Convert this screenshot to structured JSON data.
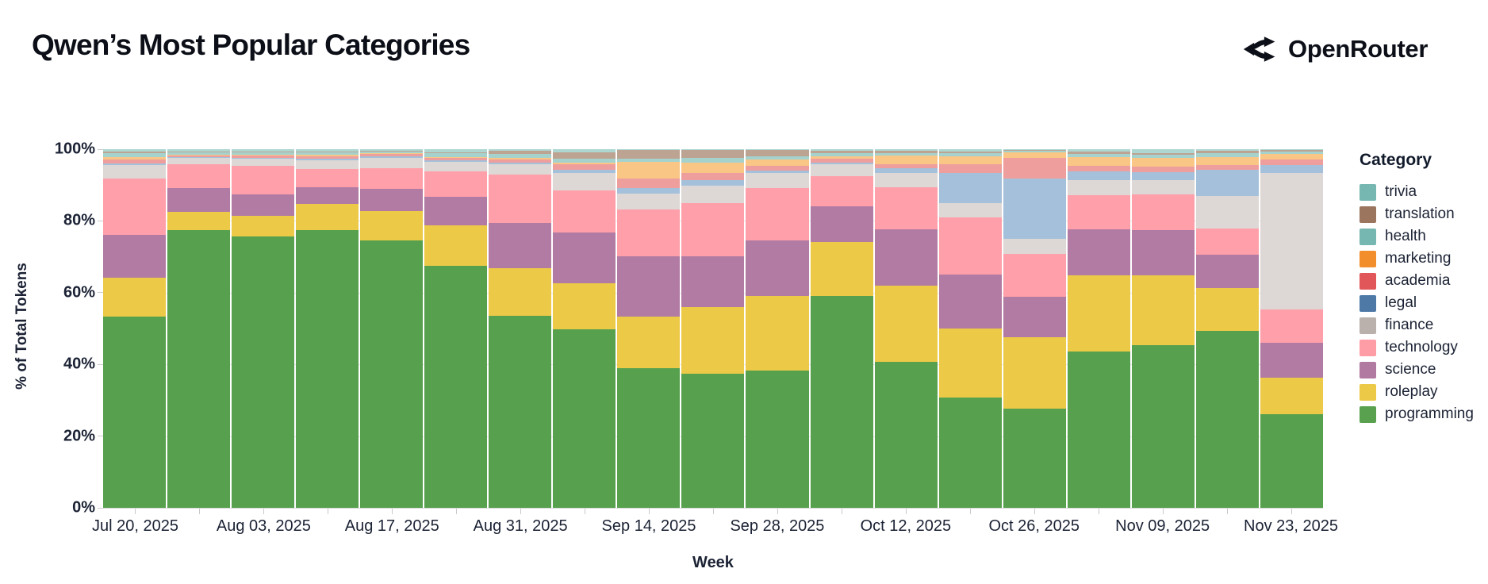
{
  "header": {
    "title": "Qwen’s Most Popular Categories",
    "brand": "OpenRouter"
  },
  "chart_data": {
    "type": "bar",
    "variant": "stacked-100-percent",
    "title": "Qwen’s Most Popular Categories",
    "xlabel": "Week",
    "ylabel": "% of Total Tokens",
    "ylim": [
      0,
      100
    ],
    "yticks": [
      "0%",
      "20%",
      "40%",
      "60%",
      "80%",
      "100%"
    ],
    "grid": "horizontal",
    "legend_position": "right",
    "legend_title": "Category",
    "x": [
      "Jul 20, 2025",
      "Jul 27, 2025",
      "Aug 03, 2025",
      "Aug 10, 2025",
      "Aug 17, 2025",
      "Aug 24, 2025",
      "Aug 31, 2025",
      "Sep 07, 2025",
      "Sep 14, 2025",
      "Sep 21, 2025",
      "Sep 28, 2025",
      "Oct 05, 2025",
      "Oct 12, 2025",
      "Oct 19, 2025",
      "Oct 26, 2025",
      "Nov 02, 2025",
      "Nov 09, 2025",
      "Nov 16, 2025",
      "Nov 23, 2025"
    ],
    "x_labels_shown": [
      "Jul 20, 2025",
      "Aug 03, 2025",
      "Aug 17, 2025",
      "Aug 31, 2025",
      "Sep 14, 2025",
      "Sep 28, 2025",
      "Oct 12, 2025",
      "Oct 26, 2025",
      "Nov 09, 2025",
      "Nov 23, 2025"
    ],
    "series": [
      {
        "name": "programming",
        "color": "#59a14f",
        "bar_color": "#57a14e",
        "values": [
          53.3,
          77.4,
          75.7,
          77.4,
          74.6,
          67.5,
          53.6,
          49.7,
          39.0,
          37.3,
          38.2,
          59.1,
          40.8,
          30.7,
          27.7,
          43.6,
          45.4,
          49.3,
          26.0
        ]
      },
      {
        "name": "roleplay",
        "color": "#edc948",
        "bar_color": "#ecc947",
        "values": [
          10.9,
          5.1,
          5.6,
          7.3,
          8.2,
          11.3,
          13.3,
          12.9,
          14.4,
          18.7,
          20.9,
          15.0,
          21.1,
          19.4,
          19.8,
          21.3,
          19.5,
          11.9,
          10.3
        ]
      },
      {
        "name": "science",
        "color": "#b07aa1",
        "bar_color": "#b17ba3",
        "values": [
          12.0,
          6.6,
          6.1,
          4.7,
          6.1,
          7.9,
          12.6,
          14.2,
          16.8,
          14.2,
          15.4,
          10.0,
          15.7,
          14.9,
          11.3,
          12.7,
          12.5,
          9.4,
          9.6
        ]
      },
      {
        "name": "technology",
        "color": "#ff9da7",
        "bar_color": "#ff9fa9",
        "values": [
          15.6,
          6.7,
          7.9,
          5.0,
          5.7,
          7.0,
          13.3,
          11.7,
          12.9,
          14.8,
          14.6,
          8.3,
          11.8,
          16.0,
          12.0,
          9.5,
          10.0,
          7.2,
          9.3
        ]
      },
      {
        "name": "finance",
        "color": "#bab0ac",
        "bar_color": "#ddd8d5",
        "values": [
          3.7,
          1.7,
          2.0,
          2.6,
          3.0,
          2.7,
          3.0,
          4.8,
          4.5,
          4.8,
          4.2,
          3.4,
          3.9,
          4.0,
          4.1,
          4.2,
          4.0,
          9.2,
          38.1
        ]
      },
      {
        "name": "legal",
        "color": "#4e79a7",
        "bar_color": "#a5c0da",
        "values": [
          0.6,
          0.2,
          0.3,
          0.4,
          0.4,
          0.5,
          0.5,
          0.9,
          1.5,
          1.5,
          0.7,
          0.4,
          1.3,
          8.3,
          16.8,
          2.4,
          2.2,
          7.2,
          2.3
        ]
      },
      {
        "name": "academia",
        "color": "#e15759",
        "bar_color": "#ee9e9d",
        "values": [
          1.0,
          0.5,
          0.6,
          0.7,
          0.6,
          0.6,
          0.8,
          1.5,
          2.8,
          2.0,
          1.3,
          1.2,
          1.2,
          2.4,
          5.8,
          1.6,
          1.5,
          1.3,
          1.5
        ]
      },
      {
        "name": "marketing",
        "color": "#f28e2b",
        "bar_color": "#f9c686",
        "values": [
          0.6,
          0.2,
          0.3,
          0.3,
          0.3,
          0.3,
          0.4,
          0.5,
          4.6,
          3.0,
          1.9,
          0.7,
          2.4,
          2.4,
          1.7,
          2.4,
          2.4,
          2.2,
          1.5
        ]
      },
      {
        "name": "health",
        "color": "#76b7b2",
        "bar_color": "#a5d2cd",
        "values": [
          1.1,
          0.7,
          0.6,
          0.7,
          0.5,
          1.2,
          1.2,
          1.2,
          0.9,
          1.3,
          0.7,
          0.9,
          0.8,
          0.7,
          0.4,
          0.9,
          0.9,
          1.1,
          0.7
        ]
      },
      {
        "name": "translation",
        "color": "#9c755f",
        "bar_color": "#bda391",
        "values": [
          0.5,
          0.3,
          0.3,
          0.3,
          0.2,
          0.2,
          0.8,
          1.7,
          2.4,
          2.1,
          1.9,
          0.6,
          0.6,
          0.6,
          0.2,
          0.7,
          0.6,
          0.8,
          0.4
        ]
      },
      {
        "name": "trivia",
        "color": "#76b7b2",
        "bar_color": "#aed7d2",
        "values": [
          0.7,
          0.6,
          0.6,
          0.6,
          0.4,
          0.8,
          0.5,
          0.9,
          0.2,
          0.3,
          0.2,
          0.4,
          0.4,
          0.6,
          0.2,
          0.7,
          1.0,
          0.4,
          0.3
        ]
      }
    ]
  }
}
